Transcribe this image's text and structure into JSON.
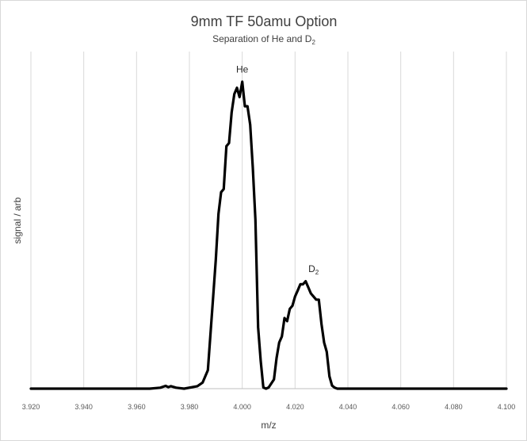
{
  "chart_data": {
    "type": "line",
    "title": "9mm TF 50amu Option",
    "subtitle": {
      "text": "Separation of He and D",
      "sub": "2"
    },
    "xlabel": "m/z",
    "ylabel": "signal / arb",
    "xlim": [
      3.92,
      4.1
    ],
    "ylim": [
      0,
      1.0
    ],
    "x_ticks": [
      "3.920",
      "3.940",
      "3.960",
      "3.980",
      "4.000",
      "4.020",
      "4.040",
      "4.060",
      "4.080",
      "4.100"
    ],
    "grid": "vertical",
    "legend": "none",
    "line_color": "#000000",
    "annotations": [
      {
        "text": "He",
        "sub": "",
        "x": 4.0,
        "y": 1.03
      },
      {
        "text": "D",
        "sub": "2",
        "x": 4.027,
        "y": 0.38
      }
    ],
    "series": [
      {
        "x": [
          3.92,
          3.965,
          3.969,
          3.971,
          3.972,
          3.973,
          3.975,
          3.978,
          3.983,
          3.985,
          3.987,
          3.989,
          3.99,
          3.991,
          3.992,
          3.993,
          3.994,
          3.995,
          3.996,
          3.997,
          3.998,
          3.999,
          4.0,
          4.001,
          4.002,
          4.003,
          4.004,
          4.005,
          4.006,
          4.007,
          4.008,
          4.009,
          4.01,
          4.012,
          4.013,
          4.014,
          4.015,
          4.016,
          4.017,
          4.018,
          4.019,
          4.02,
          4.021,
          4.022,
          4.023,
          4.024,
          4.025,
          4.026,
          4.027,
          4.028,
          4.029,
          4.03,
          4.031,
          4.032,
          4.033,
          4.034,
          4.035,
          4.036,
          4.037,
          4.04,
          4.1
        ],
        "y": [
          0.0,
          0.0,
          0.003,
          0.009,
          0.005,
          0.008,
          0.003,
          0.0,
          0.008,
          0.02,
          0.06,
          0.3,
          0.42,
          0.57,
          0.64,
          0.65,
          0.79,
          0.8,
          0.9,
          0.96,
          0.98,
          0.95,
          1.0,
          0.92,
          0.92,
          0.86,
          0.72,
          0.55,
          0.2,
          0.09,
          0.004,
          0.0,
          0.004,
          0.03,
          0.1,
          0.15,
          0.17,
          0.23,
          0.22,
          0.26,
          0.27,
          0.3,
          0.32,
          0.34,
          0.34,
          0.35,
          0.33,
          0.31,
          0.3,
          0.29,
          0.29,
          0.21,
          0.15,
          0.12,
          0.04,
          0.01,
          0.003,
          0.0,
          0.0,
          0.0,
          0.0
        ]
      }
    ]
  }
}
